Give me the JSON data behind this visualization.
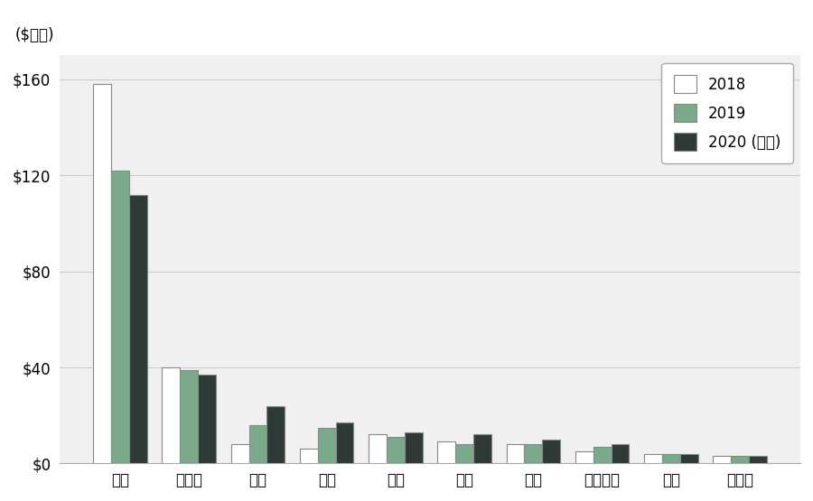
{
  "categories": [
    "中国",
    "墓西哥",
    "台湾",
    "越南",
    "韩国",
    "泰国",
    "欧洲",
    "马来西亚",
    "日本",
    "菲律宾"
  ],
  "categories_wrapped": [
    "中国",
    "墓西哥",
    "台湾",
    "越南",
    "韩国",
    "泰国",
    "欧洲",
    "马来西亚",
    "日本",
    "菲律宾"
  ],
  "values_2018": [
    158,
    40,
    8,
    6,
    12,
    9,
    8,
    5,
    4,
    3
  ],
  "values_2019": [
    122,
    39,
    16,
    15,
    11,
    8,
    8,
    7,
    4,
    3
  ],
  "values_2020": [
    112,
    37,
    24,
    17,
    13,
    12,
    10,
    8,
    4,
    3
  ],
  "color_2018": "#ffffff",
  "color_2019": "#7aaa8a",
  "color_2020": "#2d3a35",
  "bar_edge_color": "#888888",
  "legend_labels": [
    "2018",
    "2019",
    "2020 (预测)"
  ],
  "ylabel": "($十亿)",
  "yticks": [
    0,
    40,
    80,
    120,
    160
  ],
  "ytick_labels": [
    "$0",
    "$40",
    "$80",
    "$120",
    "$160"
  ],
  "background_color": "#f0f0f0",
  "grid_color": "#cccccc",
  "bar_width": 0.26,
  "axis_fontsize": 12,
  "legend_fontsize": 12
}
